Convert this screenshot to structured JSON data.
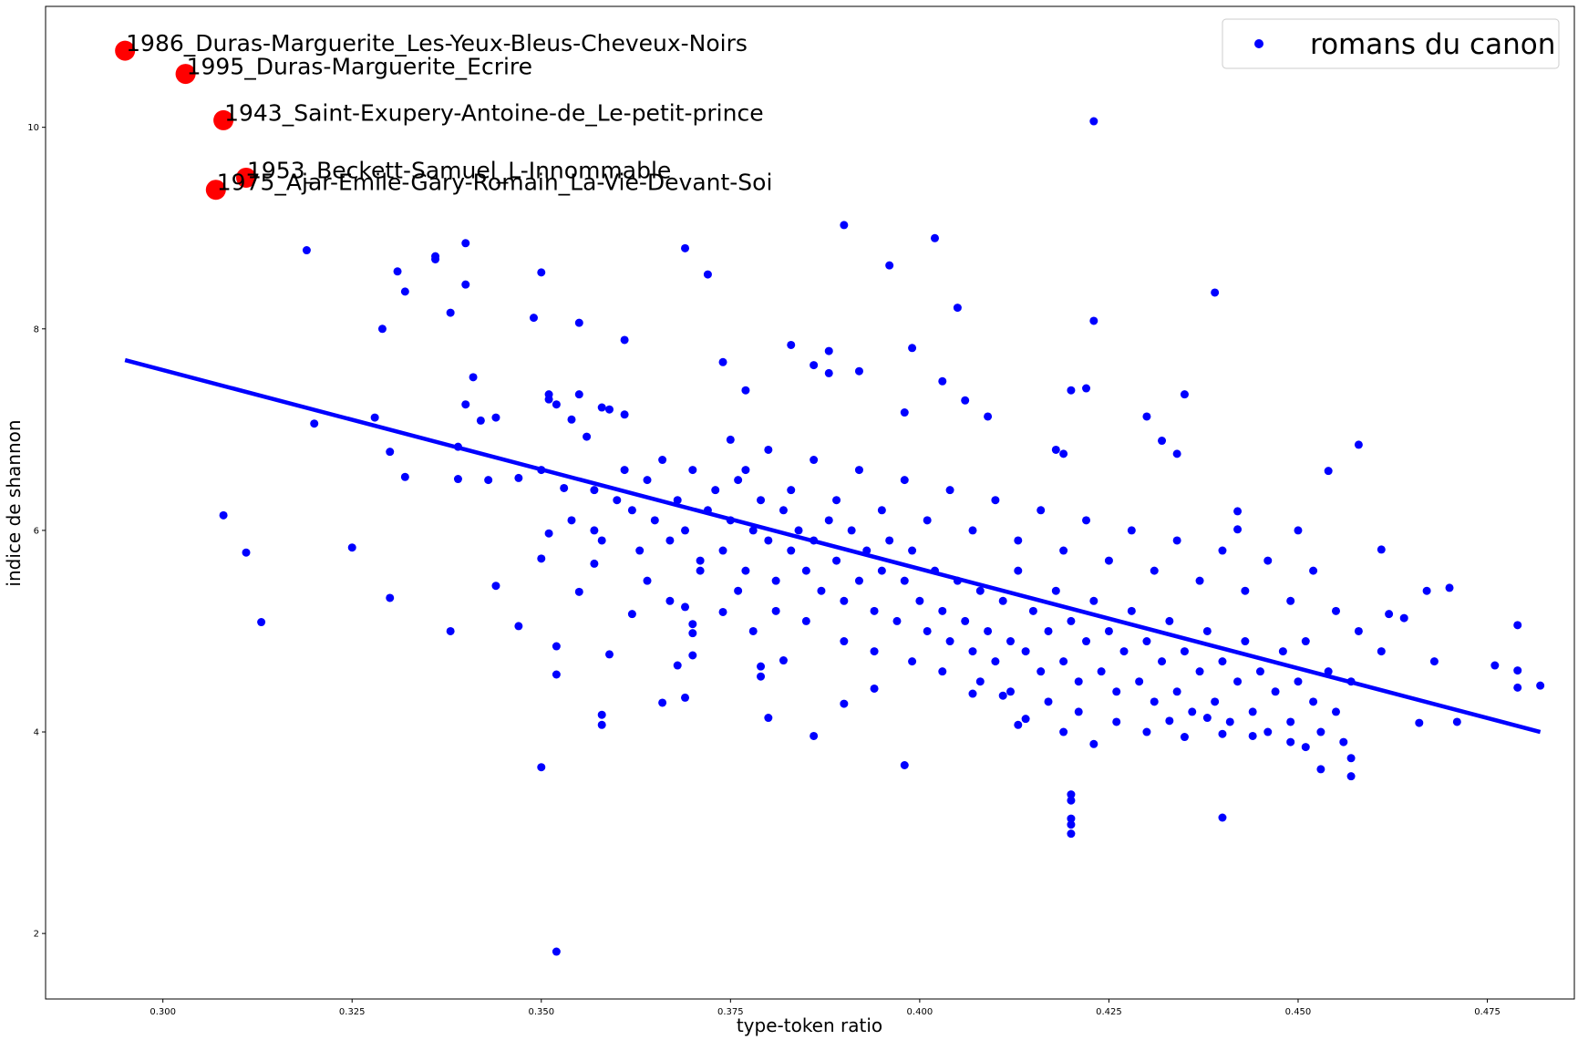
{
  "chart_data": {
    "type": "scatter",
    "xlabel": "type-token ratio",
    "ylabel": "indice de shannon",
    "xlim": [
      0.2845,
      0.4865
    ],
    "ylim": [
      1.35,
      11.2
    ],
    "x_ticks": [
      0.3,
      0.325,
      0.35,
      0.375,
      0.4,
      0.425,
      0.45,
      0.475
    ],
    "x_tick_labels": [
      "0.300",
      "0.325",
      "0.350",
      "0.375",
      "0.400",
      "0.425",
      "0.450",
      "0.475"
    ],
    "y_ticks": [
      2,
      4,
      6,
      8,
      10
    ],
    "y_tick_labels": [
      "2",
      "4",
      "6",
      "8",
      "10"
    ],
    "grid": false,
    "legend": {
      "position": "top-right",
      "entries": [
        "romans du canon"
      ]
    },
    "colors": {
      "points": "#0000ff",
      "regression": "#0000ff",
      "highlight": "#ff0000"
    },
    "series": [
      {
        "name": "romans du canon",
        "kind": "scatter",
        "points": [
          [
            0.319,
            8.78
          ],
          [
            0.32,
            7.06
          ],
          [
            0.308,
            6.15
          ],
          [
            0.311,
            5.78
          ],
          [
            0.313,
            5.09
          ],
          [
            0.325,
            5.83
          ],
          [
            0.328,
            7.12
          ],
          [
            0.329,
            8.0
          ],
          [
            0.33,
            6.78
          ],
          [
            0.33,
            5.33
          ],
          [
            0.331,
            8.57
          ],
          [
            0.332,
            8.37
          ],
          [
            0.332,
            6.53
          ],
          [
            0.336,
            8.72
          ],
          [
            0.336,
            8.69
          ],
          [
            0.338,
            8.16
          ],
          [
            0.338,
            5.0
          ],
          [
            0.339,
            6.83
          ],
          [
            0.339,
            6.51
          ],
          [
            0.34,
            8.85
          ],
          [
            0.34,
            8.44
          ],
          [
            0.34,
            7.25
          ],
          [
            0.341,
            7.52
          ],
          [
            0.342,
            7.09
          ],
          [
            0.343,
            6.5
          ],
          [
            0.344,
            7.12
          ],
          [
            0.344,
            5.45
          ],
          [
            0.347,
            6.52
          ],
          [
            0.347,
            5.05
          ],
          [
            0.349,
            8.11
          ],
          [
            0.35,
            8.56
          ],
          [
            0.35,
            6.6
          ],
          [
            0.35,
            5.72
          ],
          [
            0.35,
            3.65
          ],
          [
            0.351,
            7.35
          ],
          [
            0.351,
            7.3
          ],
          [
            0.351,
            5.97
          ],
          [
            0.352,
            7.25
          ],
          [
            0.352,
            4.85
          ],
          [
            0.352,
            4.57
          ],
          [
            0.352,
            1.82
          ],
          [
            0.353,
            6.42
          ],
          [
            0.354,
            7.1
          ],
          [
            0.354,
            6.1
          ],
          [
            0.355,
            8.06
          ],
          [
            0.355,
            7.35
          ],
          [
            0.355,
            5.39
          ],
          [
            0.356,
            6.93
          ],
          [
            0.357,
            6.0
          ],
          [
            0.357,
            5.67
          ],
          [
            0.358,
            7.22
          ],
          [
            0.358,
            4.17
          ],
          [
            0.358,
            4.07
          ],
          [
            0.359,
            7.2
          ],
          [
            0.359,
            4.77
          ],
          [
            0.361,
            7.89
          ],
          [
            0.361,
            7.15
          ],
          [
            0.362,
            5.17
          ],
          [
            0.366,
            4.29
          ],
          [
            0.368,
            4.66
          ],
          [
            0.369,
            8.8
          ],
          [
            0.369,
            5.24
          ],
          [
            0.369,
            4.34
          ],
          [
            0.37,
            5.07
          ],
          [
            0.37,
            4.98
          ],
          [
            0.37,
            4.76
          ],
          [
            0.372,
            8.54
          ],
          [
            0.374,
            7.67
          ],
          [
            0.374,
            5.19
          ],
          [
            0.377,
            7.39
          ],
          [
            0.378,
            5.0
          ],
          [
            0.379,
            4.65
          ],
          [
            0.379,
            4.55
          ],
          [
            0.38,
            4.14
          ],
          [
            0.382,
            4.71
          ],
          [
            0.383,
            7.84
          ],
          [
            0.386,
            7.64
          ],
          [
            0.386,
            3.96
          ],
          [
            0.388,
            7.56
          ],
          [
            0.388,
            7.78
          ],
          [
            0.39,
            9.03
          ],
          [
            0.39,
            4.28
          ],
          [
            0.392,
            7.58
          ],
          [
            0.394,
            4.43
          ],
          [
            0.396,
            8.63
          ],
          [
            0.398,
            7.17
          ],
          [
            0.398,
            3.67
          ],
          [
            0.399,
            7.81
          ],
          [
            0.402,
            8.9
          ],
          [
            0.403,
            7.48
          ],
          [
            0.405,
            8.21
          ],
          [
            0.406,
            7.29
          ],
          [
            0.407,
            4.38
          ],
          [
            0.409,
            7.13
          ],
          [
            0.411,
            4.36
          ],
          [
            0.413,
            4.07
          ],
          [
            0.414,
            4.13
          ],
          [
            0.418,
            6.8
          ],
          [
            0.419,
            6.76
          ],
          [
            0.419,
            4.0
          ],
          [
            0.42,
            7.39
          ],
          [
            0.42,
            3.38
          ],
          [
            0.42,
            3.32
          ],
          [
            0.42,
            3.14
          ],
          [
            0.42,
            3.08
          ],
          [
            0.42,
            2.99
          ],
          [
            0.422,
            7.41
          ],
          [
            0.423,
            10.06
          ],
          [
            0.423,
            8.08
          ],
          [
            0.423,
            3.88
          ],
          [
            0.43,
            7.13
          ],
          [
            0.432,
            6.89
          ],
          [
            0.433,
            4.11
          ],
          [
            0.434,
            6.76
          ],
          [
            0.435,
            7.35
          ],
          [
            0.438,
            4.14
          ],
          [
            0.439,
            8.36
          ],
          [
            0.44,
            3.15
          ],
          [
            0.442,
            6.19
          ],
          [
            0.442,
            6.01
          ],
          [
            0.45,
            6.0
          ],
          [
            0.451,
            3.85
          ],
          [
            0.453,
            3.63
          ],
          [
            0.454,
            6.59
          ],
          [
            0.457,
            3.74
          ],
          [
            0.457,
            3.56
          ],
          [
            0.458,
            6.85
          ],
          [
            0.461,
            5.81
          ],
          [
            0.462,
            5.17
          ],
          [
            0.464,
            5.13
          ],
          [
            0.466,
            4.09
          ],
          [
            0.467,
            5.4
          ],
          [
            0.468,
            4.7
          ],
          [
            0.47,
            5.43
          ],
          [
            0.471,
            4.1
          ],
          [
            0.476,
            4.66
          ],
          [
            0.479,
            5.06
          ],
          [
            0.479,
            4.61
          ],
          [
            0.479,
            4.44
          ],
          [
            0.482,
            4.46
          ],
          [
            0.357,
            6.4
          ],
          [
            0.358,
            5.9
          ],
          [
            0.36,
            6.3
          ],
          [
            0.361,
            6.6
          ],
          [
            0.362,
            6.2
          ],
          [
            0.363,
            5.8
          ],
          [
            0.364,
            6.5
          ],
          [
            0.365,
            6.1
          ],
          [
            0.366,
            6.7
          ],
          [
            0.367,
            5.9
          ],
          [
            0.368,
            6.3
          ],
          [
            0.369,
            6.0
          ],
          [
            0.37,
            6.6
          ],
          [
            0.371,
            5.7
          ],
          [
            0.372,
            6.2
          ],
          [
            0.373,
            6.4
          ],
          [
            0.374,
            5.8
          ],
          [
            0.375,
            6.1
          ],
          [
            0.376,
            6.5
          ],
          [
            0.377,
            5.6
          ],
          [
            0.378,
            6.0
          ],
          [
            0.379,
            6.3
          ],
          [
            0.38,
            5.9
          ],
          [
            0.381,
            5.5
          ],
          [
            0.382,
            6.2
          ],
          [
            0.383,
            5.8
          ],
          [
            0.384,
            6.0
          ],
          [
            0.385,
            5.6
          ],
          [
            0.386,
            5.9
          ],
          [
            0.387,
            5.4
          ],
          [
            0.388,
            6.1
          ],
          [
            0.389,
            5.7
          ],
          [
            0.39,
            5.3
          ],
          [
            0.391,
            6.0
          ],
          [
            0.392,
            5.5
          ],
          [
            0.393,
            5.8
          ],
          [
            0.394,
            5.2
          ],
          [
            0.395,
            5.6
          ],
          [
            0.396,
            5.9
          ],
          [
            0.397,
            5.1
          ],
          [
            0.398,
            5.5
          ],
          [
            0.399,
            5.8
          ],
          [
            0.4,
            5.3
          ],
          [
            0.401,
            5.0
          ],
          [
            0.402,
            5.6
          ],
          [
            0.403,
            5.2
          ],
          [
            0.404,
            4.9
          ],
          [
            0.405,
            5.5
          ],
          [
            0.406,
            5.1
          ],
          [
            0.407,
            4.8
          ],
          [
            0.408,
            5.4
          ],
          [
            0.409,
            5.0
          ],
          [
            0.41,
            4.7
          ],
          [
            0.411,
            5.3
          ],
          [
            0.412,
            4.9
          ],
          [
            0.413,
            5.6
          ],
          [
            0.414,
            4.8
          ],
          [
            0.415,
            5.2
          ],
          [
            0.416,
            4.6
          ],
          [
            0.417,
            5.0
          ],
          [
            0.418,
            5.4
          ],
          [
            0.419,
            4.7
          ],
          [
            0.42,
            5.1
          ],
          [
            0.421,
            4.5
          ],
          [
            0.422,
            4.9
          ],
          [
            0.423,
            5.3
          ],
          [
            0.424,
            4.6
          ],
          [
            0.425,
            5.0
          ],
          [
            0.426,
            4.4
          ],
          [
            0.427,
            4.8
          ],
          [
            0.428,
            5.2
          ],
          [
            0.429,
            4.5
          ],
          [
            0.43,
            4.9
          ],
          [
            0.431,
            4.3
          ],
          [
            0.432,
            4.7
          ],
          [
            0.433,
            5.1
          ],
          [
            0.434,
            4.4
          ],
          [
            0.435,
            4.8
          ],
          [
            0.436,
            4.2
          ],
          [
            0.437,
            4.6
          ],
          [
            0.438,
            5.0
          ],
          [
            0.439,
            4.3
          ],
          [
            0.44,
            4.7
          ],
          [
            0.441,
            4.1
          ],
          [
            0.442,
            4.5
          ],
          [
            0.443,
            4.9
          ],
          [
            0.444,
            4.2
          ],
          [
            0.445,
            4.6
          ],
          [
            0.446,
            4.0
          ],
          [
            0.447,
            4.4
          ],
          [
            0.448,
            4.8
          ],
          [
            0.449,
            4.1
          ],
          [
            0.45,
            4.5
          ],
          [
            0.451,
            4.9
          ],
          [
            0.452,
            4.3
          ],
          [
            0.453,
            4.0
          ],
          [
            0.454,
            4.6
          ],
          [
            0.455,
            4.2
          ],
          [
            0.456,
            3.9
          ],
          [
            0.457,
            4.5
          ],
          [
            0.375,
            6.9
          ],
          [
            0.377,
            6.6
          ],
          [
            0.38,
            6.8
          ],
          [
            0.383,
            6.4
          ],
          [
            0.386,
            6.7
          ],
          [
            0.389,
            6.3
          ],
          [
            0.392,
            6.6
          ],
          [
            0.395,
            6.2
          ],
          [
            0.398,
            6.5
          ],
          [
            0.401,
            6.1
          ],
          [
            0.404,
            6.4
          ],
          [
            0.407,
            6.0
          ],
          [
            0.41,
            6.3
          ],
          [
            0.413,
            5.9
          ],
          [
            0.416,
            6.2
          ],
          [
            0.419,
            5.8
          ],
          [
            0.422,
            6.1
          ],
          [
            0.425,
            5.7
          ],
          [
            0.428,
            6.0
          ],
          [
            0.431,
            5.6
          ],
          [
            0.434,
            5.9
          ],
          [
            0.437,
            5.5
          ],
          [
            0.44,
            5.8
          ],
          [
            0.443,
            5.4
          ],
          [
            0.446,
            5.7
          ],
          [
            0.449,
            5.3
          ],
          [
            0.452,
            5.6
          ],
          [
            0.455,
            5.2
          ],
          [
            0.458,
            5.0
          ],
          [
            0.461,
            4.8
          ],
          [
            0.364,
            5.5
          ],
          [
            0.367,
            5.3
          ],
          [
            0.371,
            5.6
          ],
          [
            0.376,
            5.4
          ],
          [
            0.381,
            5.2
          ],
          [
            0.385,
            5.1
          ],
          [
            0.39,
            4.9
          ],
          [
            0.394,
            4.8
          ],
          [
            0.399,
            4.7
          ],
          [
            0.403,
            4.6
          ],
          [
            0.408,
            4.5
          ],
          [
            0.412,
            4.4
          ],
          [
            0.417,
            4.3
          ],
          [
            0.421,
            4.2
          ],
          [
            0.426,
            4.1
          ],
          [
            0.43,
            4.0
          ],
          [
            0.435,
            3.95
          ],
          [
            0.44,
            3.98
          ],
          [
            0.444,
            3.96
          ],
          [
            0.449,
            3.9
          ]
        ]
      },
      {
        "name": "",
        "kind": "regression-line",
        "x": [
          0.295,
          0.482
        ],
        "y": [
          7.69,
          4.0
        ]
      },
      {
        "name": "",
        "kind": "highlighted",
        "points": [
          {
            "x": 0.295,
            "y": 10.76,
            "label": "1986_Duras-Marguerite_Les-Yeux-Bleus-Cheveux-Noirs"
          },
          {
            "x": 0.303,
            "y": 10.53,
            "label": "1995_Duras-Marguerite_Ecrire"
          },
          {
            "x": 0.308,
            "y": 10.07,
            "label": "1943_Saint-Exupery-Antoine-de_Le-petit-prince"
          },
          {
            "x": 0.311,
            "y": 9.5,
            "label": "1953_Beckett-Samuel_L-Innommable"
          },
          {
            "x": 0.307,
            "y": 9.38,
            "label": "1975_Ajar-Emile-Gary-Romain_La-Vie-Devant-Soi"
          }
        ]
      }
    ]
  }
}
